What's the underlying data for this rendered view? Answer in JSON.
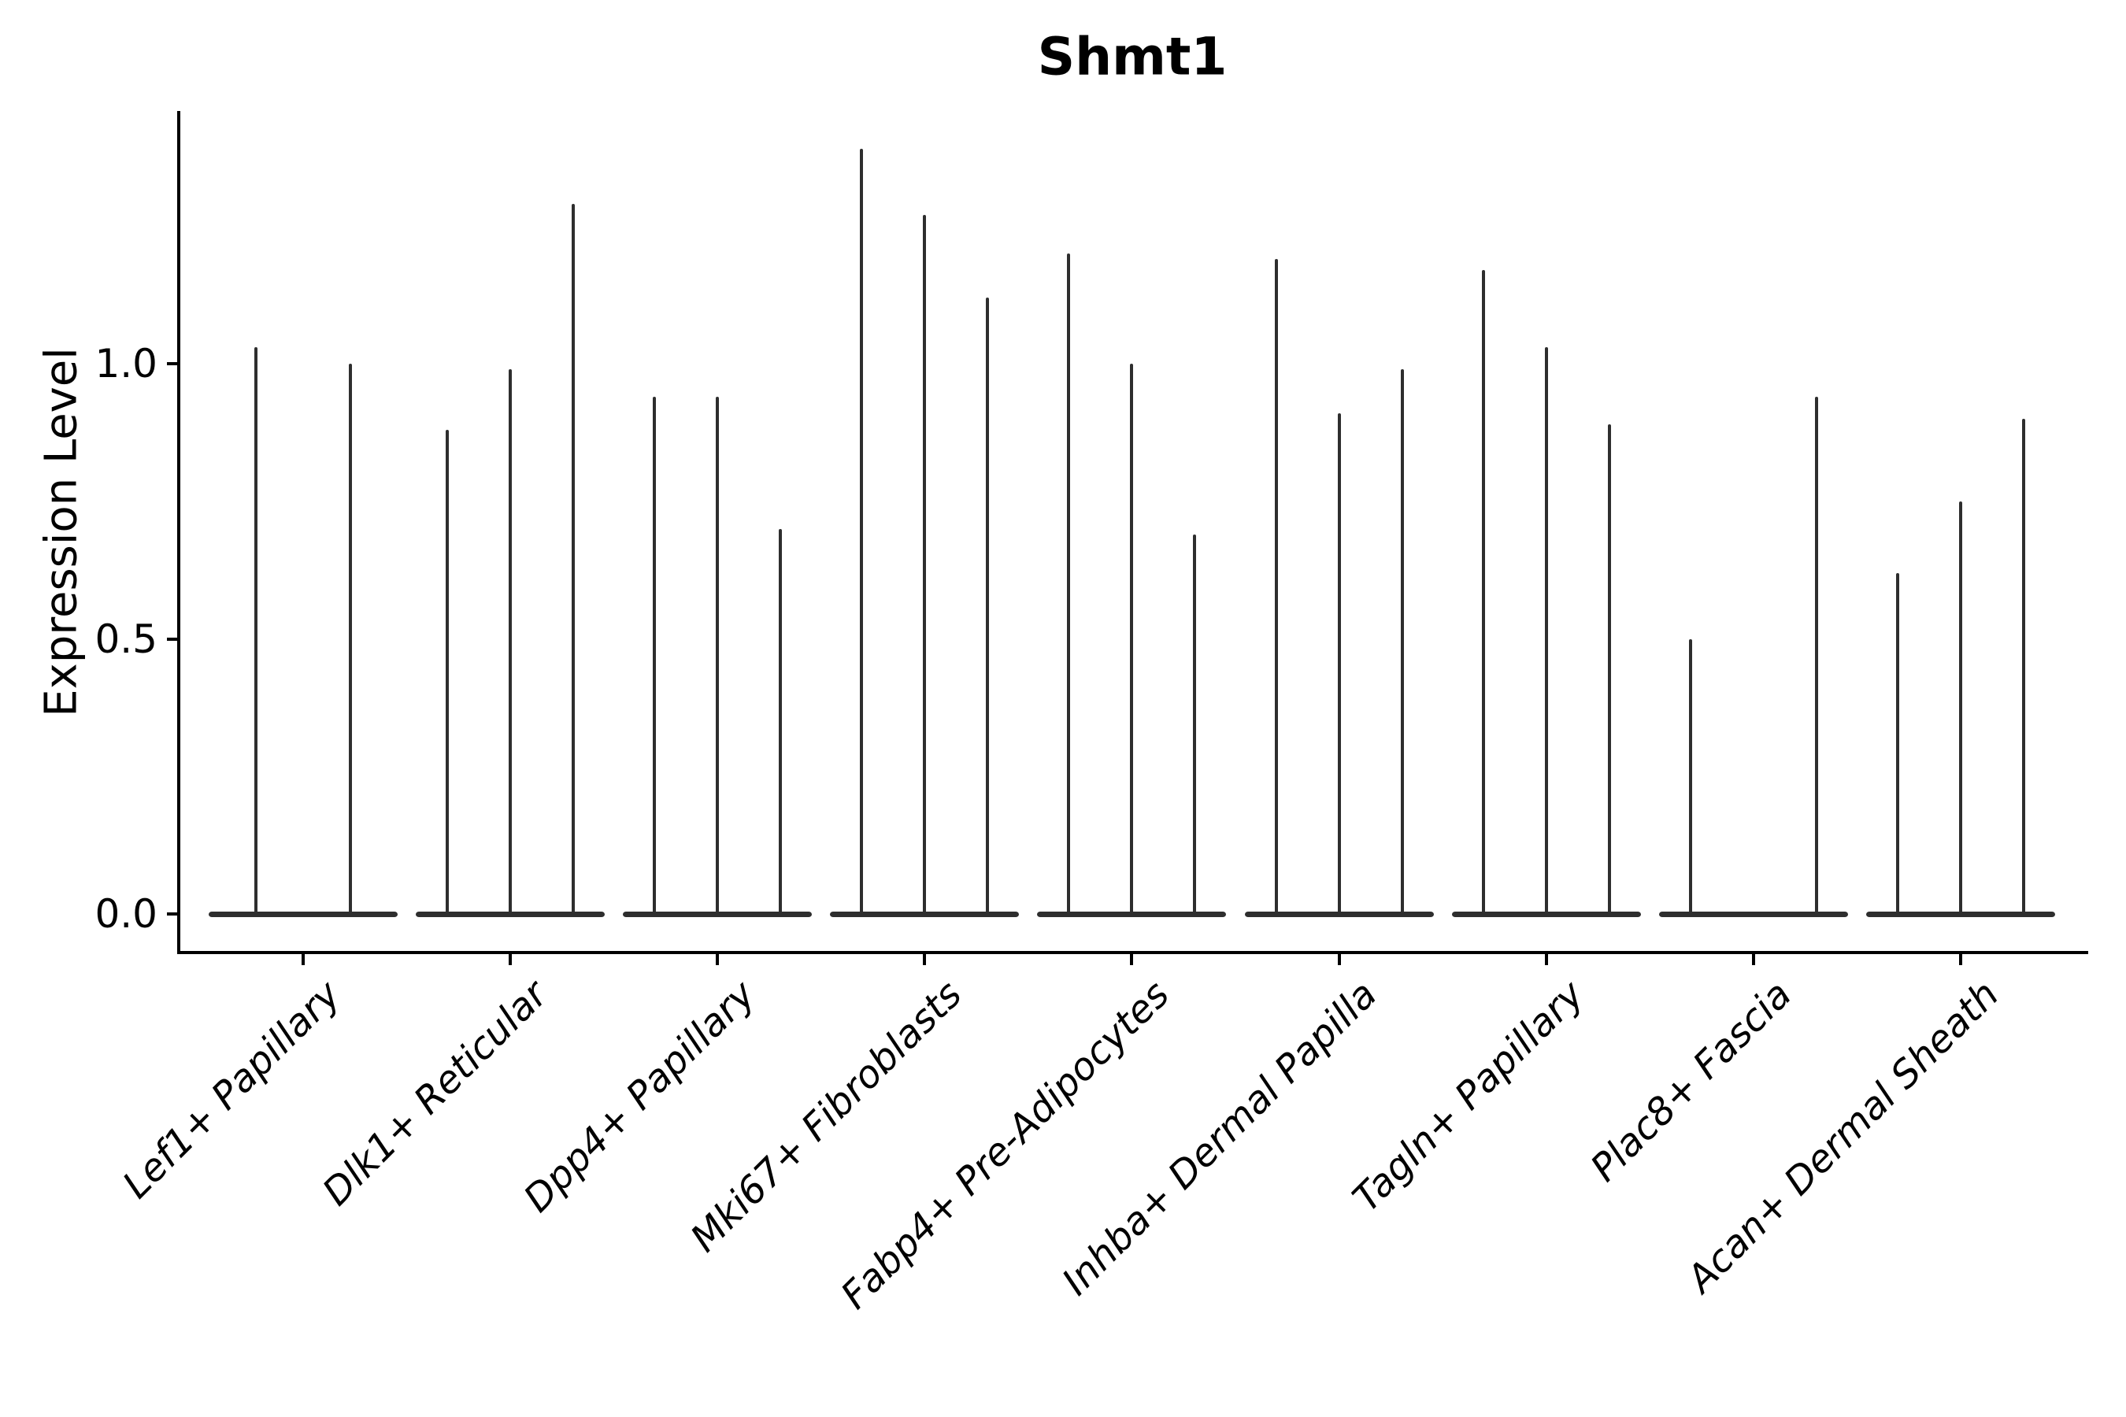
{
  "title": "Shmt1",
  "axes": {
    "ylabel": "Expression Level",
    "ytick_labels": [
      "0.0",
      "0.5",
      "1.0"
    ]
  },
  "colors": {
    "background": "#ffffff",
    "axis": "#000000",
    "text": "#000000",
    "violin": "#2e2e2e"
  },
  "chart_data": {
    "type": "violin",
    "title": "Shmt1",
    "ylabel": "Expression Level",
    "yticks": [
      0.0,
      0.5,
      1.0
    ],
    "ylim": [
      -0.07,
      1.46
    ],
    "x_tick_rotation_deg": 45,
    "grid": false,
    "legend": "none",
    "categories": [
      "Lef1+ Papillary",
      "Dlk1+ Reticular",
      "Dpp4+ Papillary",
      "Mki67+ Fibroblasts",
      "Fabp4+ Pre-Adipocytes",
      "Inhba+ Dermal Papilla",
      "Tagln+ Papillary",
      "Plac8+ Fascia",
      "Acan+ Dermal Sheath"
    ],
    "groups": [
      {
        "category": "Lef1+ Papillary",
        "violin_peaks": [
          1.03,
          1.0
        ]
      },
      {
        "category": "Dlk1+ Reticular",
        "violin_peaks": [
          0.88,
          0.99,
          1.29
        ]
      },
      {
        "category": "Dpp4+ Papillary",
        "violin_peaks": [
          0.94,
          0.94,
          0.7
        ]
      },
      {
        "category": "Mki67+ Fibroblasts",
        "violin_peaks": [
          1.39,
          1.27,
          1.12
        ]
      },
      {
        "category": "Fabp4+ Pre-Adipocytes",
        "violin_peaks": [
          1.2,
          1.0,
          0.69
        ]
      },
      {
        "category": "Inhba+ Dermal Papilla",
        "violin_peaks": [
          1.19,
          0.91,
          0.99
        ]
      },
      {
        "category": "Tagln+ Papillary",
        "violin_peaks": [
          1.17,
          1.03,
          0.89
        ]
      },
      {
        "category": "Plac8+ Fascia",
        "violin_peaks": [
          0.5,
          0.0,
          0.94
        ]
      },
      {
        "category": "Acan+ Dermal Sheath",
        "violin_peaks": [
          0.62,
          0.75,
          0.9
        ]
      }
    ]
  }
}
